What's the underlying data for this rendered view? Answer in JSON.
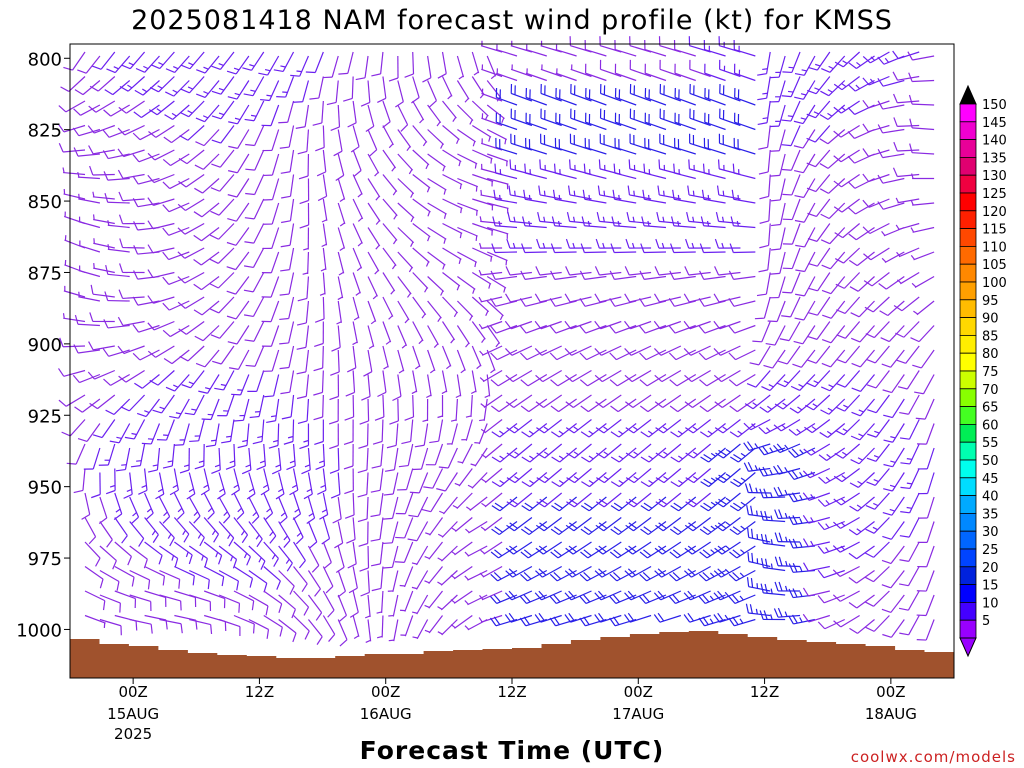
{
  "chart_data": {
    "type": "wind-barb time-height",
    "title": "2025081418 NAM forecast wind profile (kt) for KMSS",
    "xlabel": "Forecast Time (UTC)",
    "credit": "coolwx.com/models",
    "y_axis": {
      "ticks": [
        "800",
        "825",
        "850",
        "875",
        "900",
        "925",
        "950",
        "975",
        "1000"
      ],
      "range_hpa": [
        795,
        1017
      ],
      "reversed": true
    },
    "x_axis": {
      "ticks": [
        {
          "label": "00Z",
          "date": "15AUG",
          "year": "2025",
          "hour": 6
        },
        {
          "label": "12Z",
          "hour": 18
        },
        {
          "label": "00Z",
          "date": "16AUG",
          "hour": 30
        },
        {
          "label": "12Z",
          "hour": 42
        },
        {
          "label": "00Z",
          "date": "17AUG",
          "hour": 54
        },
        {
          "label": "12Z",
          "hour": 66
        },
        {
          "label": "00Z",
          "date": "18AUG",
          "hour": 78
        }
      ],
      "range_hours": [
        0,
        84
      ]
    },
    "colorbar": {
      "levels": [
        "150",
        "145",
        "140",
        "135",
        "130",
        "125",
        "120",
        "115",
        "110",
        "105",
        "100",
        "95",
        "90",
        "85",
        "80",
        "75",
        "70",
        "65",
        "60",
        "55",
        "50",
        "45",
        "40",
        "35",
        "30",
        "25",
        "20",
        "15",
        "10",
        "5"
      ],
      "colors": [
        "#ff00ff",
        "#f000d0",
        "#e80098",
        "#e00070",
        "#f00040",
        "#ff0000",
        "#ff2000",
        "#ff4800",
        "#ff6a00",
        "#ff8800",
        "#ffa000",
        "#ffbc00",
        "#ffd800",
        "#ffee00",
        "#ffff00",
        "#ccff00",
        "#88ff00",
        "#44ff22",
        "#00ee55",
        "#00ffb0",
        "#00ffee",
        "#00ddff",
        "#00aaff",
        "#0088ff",
        "#0066ff",
        "#0044ff",
        "#0022dd",
        "#0000ff",
        "#4400ff",
        "#9900ff"
      ],
      "arrow_top_color": "#000000",
      "arrow_bottom_color": "#9900ff"
    },
    "terrain_color": "#a0522d",
    "barb_colors": {
      "light": "#8a2be2",
      "medium": "#6a20f0",
      "strong": "#2a20e8"
    }
  }
}
